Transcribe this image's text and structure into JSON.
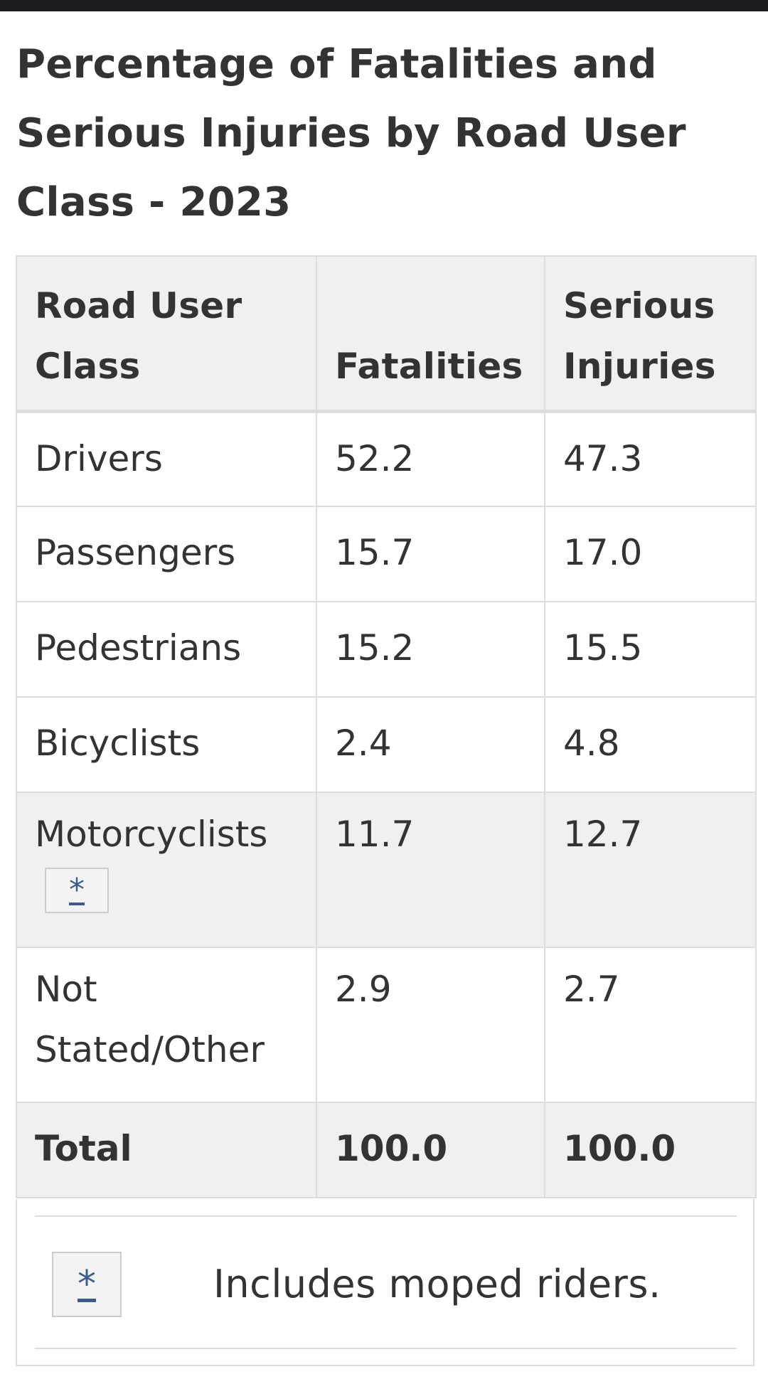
{
  "title": "Percentage of Fatalities and Serious Injuries by Road User Class - 2023",
  "table": {
    "headers": [
      "Road User Class",
      "Fatalities",
      "Serious Injuries"
    ],
    "rows": [
      {
        "class": "Drivers",
        "fatalities": "52.2",
        "serious_injuries": "47.3"
      },
      {
        "class": "Passengers",
        "fatalities": "15.7",
        "serious_injuries": "17.0"
      },
      {
        "class": "Pedestrians",
        "fatalities": "15.2",
        "serious_injuries": "15.5"
      },
      {
        "class": "Bicyclists",
        "fatalities": "2.4",
        "serious_injuries": "4.8"
      },
      {
        "class": "Motorcyclists",
        "footnote_ref": "*",
        "fatalities": "11.7",
        "serious_injuries": "12.7"
      },
      {
        "class": "Not Stated/Other",
        "fatalities": "2.9",
        "serious_injuries": "2.7"
      }
    ],
    "total": {
      "label": "Total",
      "fatalities": "100.0",
      "serious_injuries": "100.0"
    }
  },
  "footnote": {
    "marker": "*",
    "text": "Includes moped riders."
  }
}
